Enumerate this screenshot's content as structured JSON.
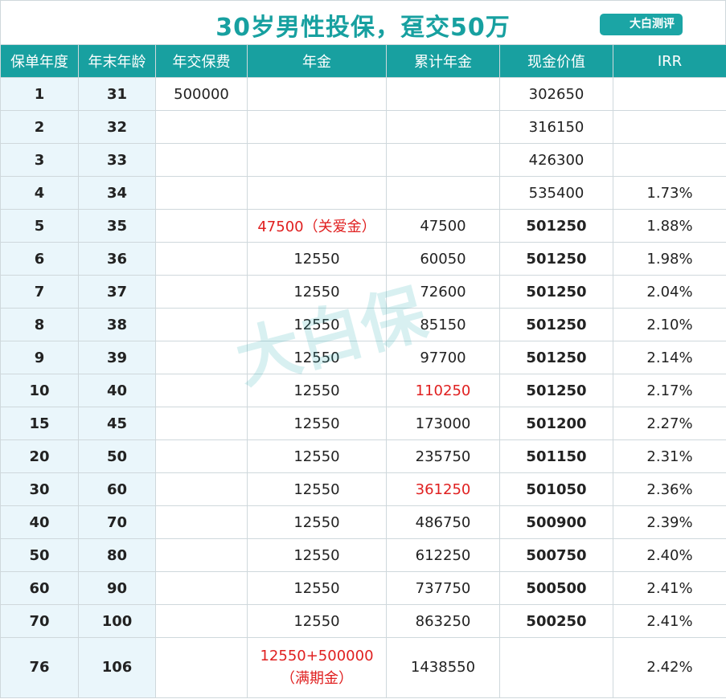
{
  "header": {
    "title": "30岁男性投保，趸交50万",
    "logo": "大白测评"
  },
  "watermark": "大白保",
  "table": {
    "columns": [
      "保单年度",
      "年末年龄",
      "年交保费",
      "年金",
      "累计年金",
      "现金价值",
      "IRR"
    ],
    "rows": [
      [
        "1",
        "31",
        "500000",
        null,
        null,
        "302650",
        null
      ],
      [
        "2",
        "32",
        null,
        null,
        null,
        "316150",
        null
      ],
      [
        "3",
        "33",
        null,
        null,
        null,
        "426300",
        null
      ],
      [
        "4",
        "34",
        null,
        null,
        null,
        "535400",
        "1.73%"
      ],
      [
        "5",
        "35",
        null,
        "47500（关爱金）",
        "47500",
        "501250",
        "1.88%"
      ],
      [
        "6",
        "36",
        null,
        "12550",
        "60050",
        "501250",
        "1.98%"
      ],
      [
        "7",
        "37",
        null,
        "12550",
        "72600",
        "501250",
        "2.04%"
      ],
      [
        "8",
        "38",
        null,
        "12550",
        "85150",
        "501250",
        "2.10%"
      ],
      [
        "9",
        "39",
        null,
        "12550",
        "97700",
        "501250",
        "2.14%"
      ],
      [
        "10",
        "40",
        null,
        "12550",
        "110250",
        "501250",
        "2.17%"
      ],
      [
        "15",
        "45",
        null,
        "12550",
        "173000",
        "501200",
        "2.27%"
      ],
      [
        "20",
        "50",
        null,
        "12550",
        "235750",
        "501150",
        "2.31%"
      ],
      [
        "30",
        "60",
        null,
        "12550",
        "361250",
        "501050",
        "2.36%"
      ],
      [
        "40",
        "70",
        null,
        "12550",
        "486750",
        "500900",
        "2.39%"
      ],
      [
        "50",
        "80",
        null,
        "12550",
        "612250",
        "500750",
        "2.40%"
      ],
      [
        "60",
        "90",
        null,
        "12550",
        "737750",
        "500500",
        "2.41%"
      ],
      [
        "70",
        "100",
        null,
        "12550",
        "863250",
        "500250",
        "2.41%"
      ],
      [
        "76",
        "106",
        null,
        "12550+500000\n（满期金）",
        "1438550",
        null,
        "2.42%"
      ]
    ]
  }
}
